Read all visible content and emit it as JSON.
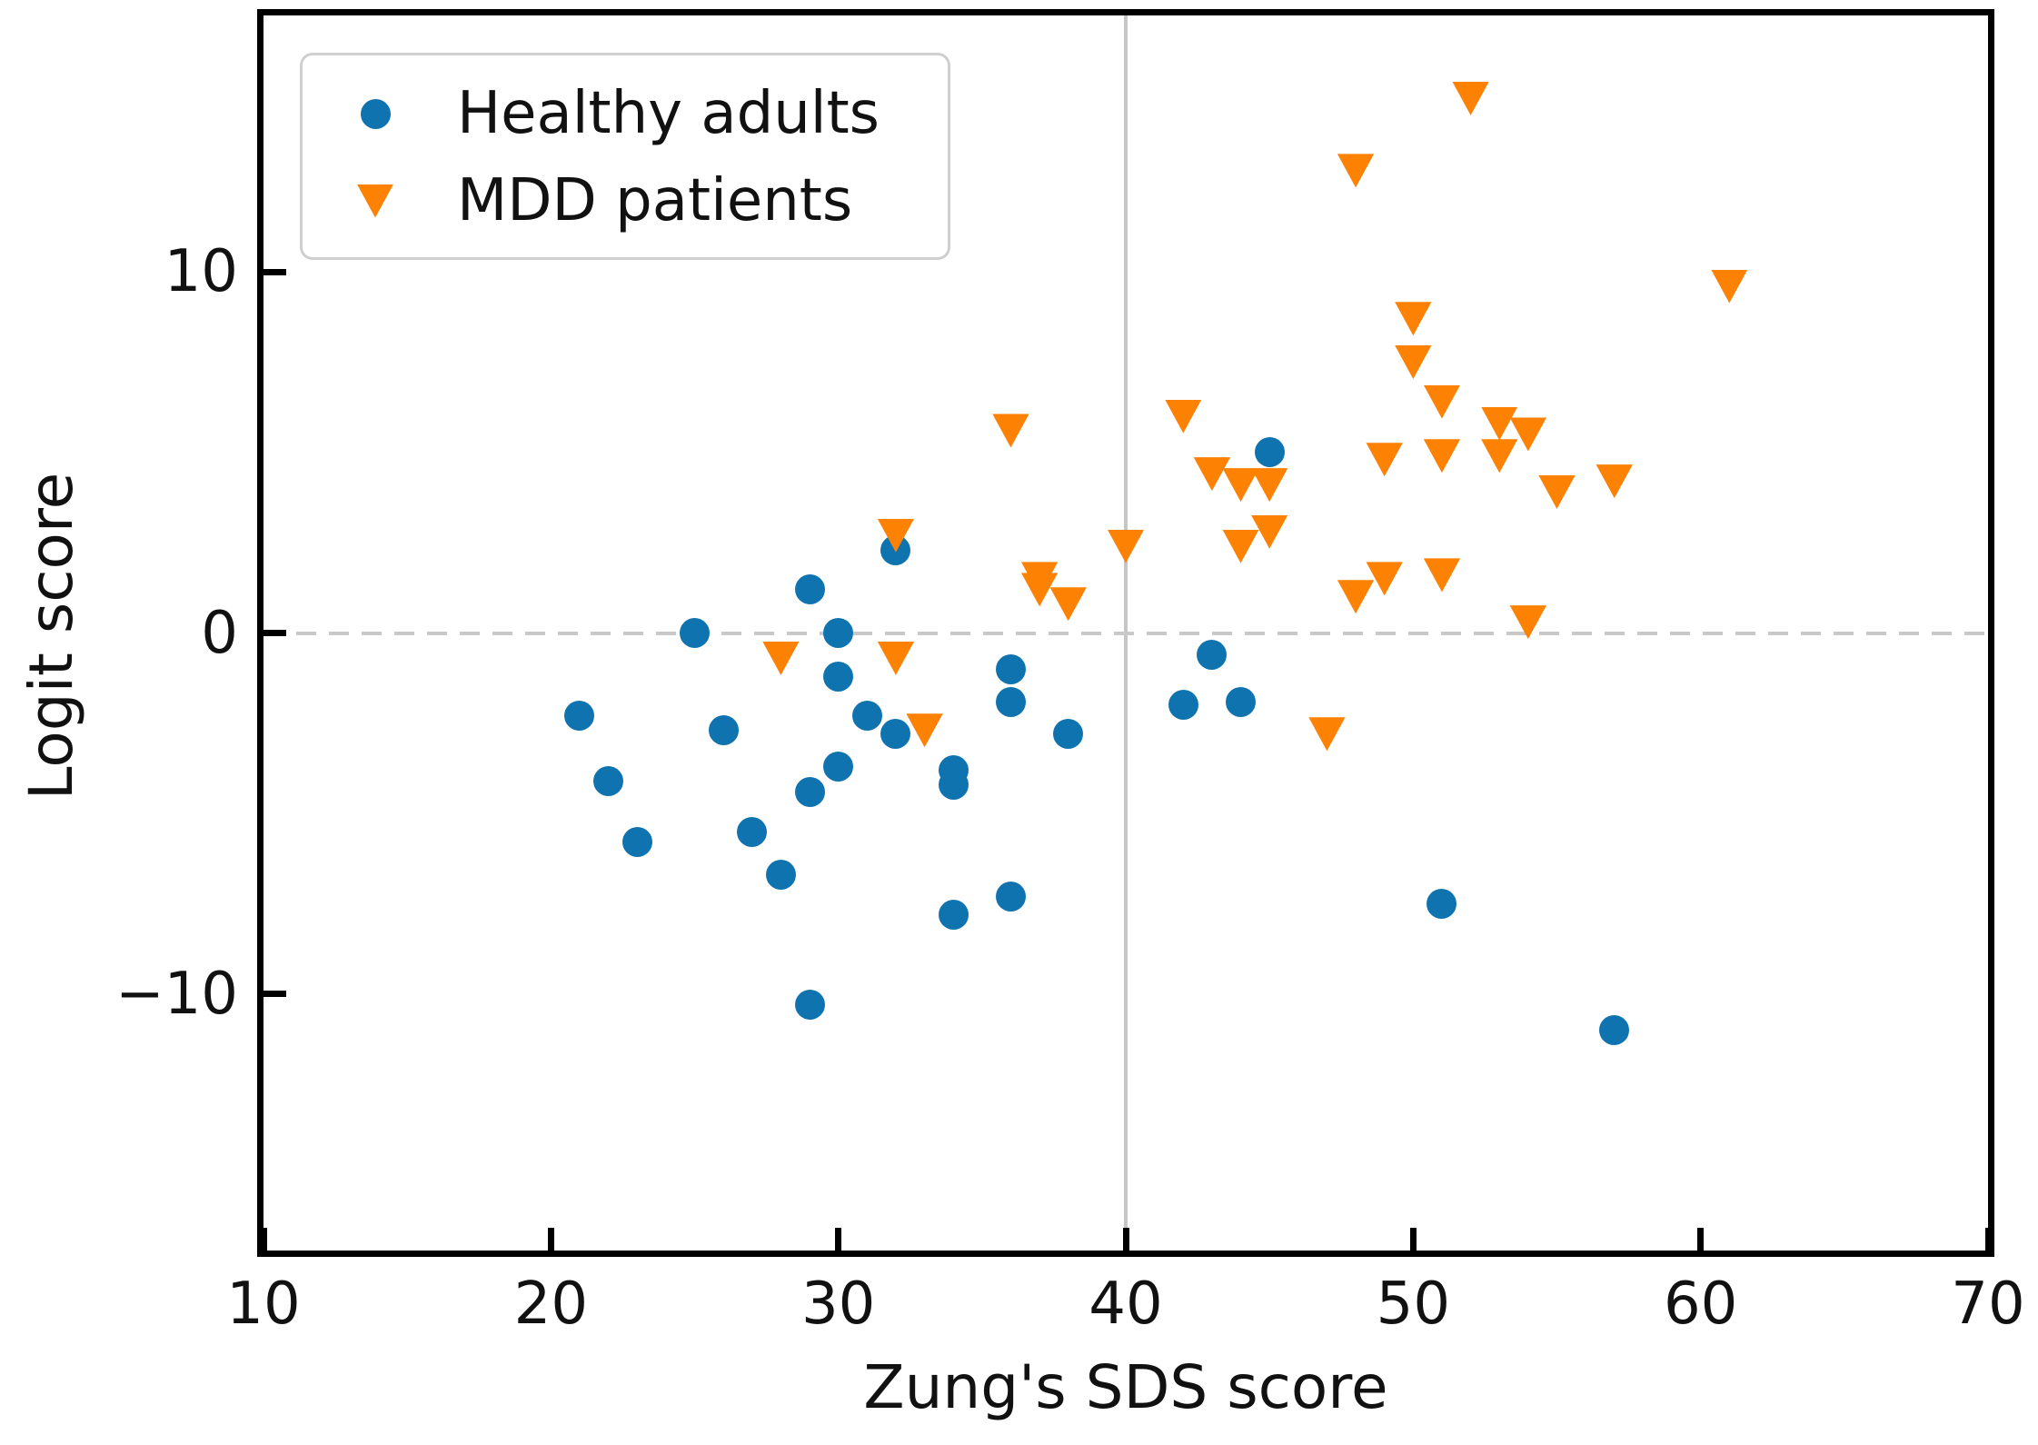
{
  "chart_data": {
    "type": "scatter",
    "title": "",
    "xlabel": "Zung's SDS score",
    "ylabel": "Logit score",
    "xlim": [
      10,
      70
    ],
    "ylim": [
      -17.1,
      17.1
    ],
    "grid": false,
    "x_ticks": [
      10,
      20,
      30,
      40,
      50,
      60,
      70
    ],
    "x_tick_labels": [
      "10",
      "20",
      "30",
      "40",
      "50",
      "60",
      "70"
    ],
    "y_ticks": [
      10,
      0,
      -10
    ],
    "y_tick_labels": [
      "10",
      "0",
      "−10"
    ],
    "reference_lines": [
      {
        "orientation": "vertical",
        "x": 40,
        "style": "solid",
        "color": "#c6c6c6"
      },
      {
        "orientation": "horizontal",
        "y": 0,
        "style": "dashed",
        "color": "#c9c9c9"
      }
    ],
    "legend": {
      "position": "upper-left",
      "entries": [
        {
          "label": "Healthy adults",
          "marker": "circle",
          "color": "#0f73af"
        },
        {
          "label": "MDD patients",
          "marker": "triangle-down",
          "color": "#fd8204"
        }
      ]
    },
    "series": [
      {
        "name": "Healthy adults",
        "marker": "circle",
        "color": "#0f73af",
        "points": [
          [
            21,
            -2.3
          ],
          [
            22,
            -4.1
          ],
          [
            23,
            -5.8
          ],
          [
            25,
            0.0
          ],
          [
            26,
            -2.7
          ],
          [
            27,
            -5.5
          ],
          [
            28,
            -6.7
          ],
          [
            29,
            1.2
          ],
          [
            29,
            -4.4
          ],
          [
            29,
            -10.3
          ],
          [
            30,
            0.0
          ],
          [
            30,
            -1.2
          ],
          [
            30,
            -3.7
          ],
          [
            31,
            -2.3
          ],
          [
            32,
            2.3
          ],
          [
            32,
            -2.8
          ],
          [
            34,
            -3.8
          ],
          [
            34,
            -4.2
          ],
          [
            34,
            -7.8
          ],
          [
            36,
            -1.0
          ],
          [
            36,
            -1.9
          ],
          [
            36,
            -7.3
          ],
          [
            38,
            -2.8
          ],
          [
            42,
            -2.0
          ],
          [
            43,
            -0.6
          ],
          [
            44,
            -1.9
          ],
          [
            45,
            5.0
          ],
          [
            51,
            -7.5
          ],
          [
            57,
            -11.0
          ]
        ]
      },
      {
        "name": "MDD patients",
        "marker": "triangle-down",
        "color": "#fd8204",
        "points": [
          [
            28,
            -0.7
          ],
          [
            32,
            2.7
          ],
          [
            32,
            -0.7
          ],
          [
            33,
            -2.7
          ],
          [
            36,
            5.6
          ],
          [
            37,
            1.5
          ],
          [
            37,
            1.2
          ],
          [
            38,
            0.8
          ],
          [
            40,
            2.4
          ],
          [
            42,
            6.0
          ],
          [
            43,
            4.4
          ],
          [
            44,
            4.1
          ],
          [
            44,
            2.4
          ],
          [
            45,
            4.1
          ],
          [
            45,
            2.8
          ],
          [
            47,
            -2.8
          ],
          [
            48,
            12.8
          ],
          [
            48,
            1.0
          ],
          [
            49,
            4.8
          ],
          [
            49,
            1.5
          ],
          [
            50,
            8.7
          ],
          [
            50,
            7.5
          ],
          [
            51,
            6.4
          ],
          [
            51,
            4.9
          ],
          [
            51,
            1.6
          ],
          [
            52,
            14.8
          ],
          [
            53,
            5.8
          ],
          [
            53,
            4.9
          ],
          [
            54,
            5.5
          ],
          [
            54,
            0.3
          ],
          [
            55,
            3.9
          ],
          [
            57,
            4.2
          ],
          [
            61,
            9.6
          ]
        ]
      }
    ]
  }
}
